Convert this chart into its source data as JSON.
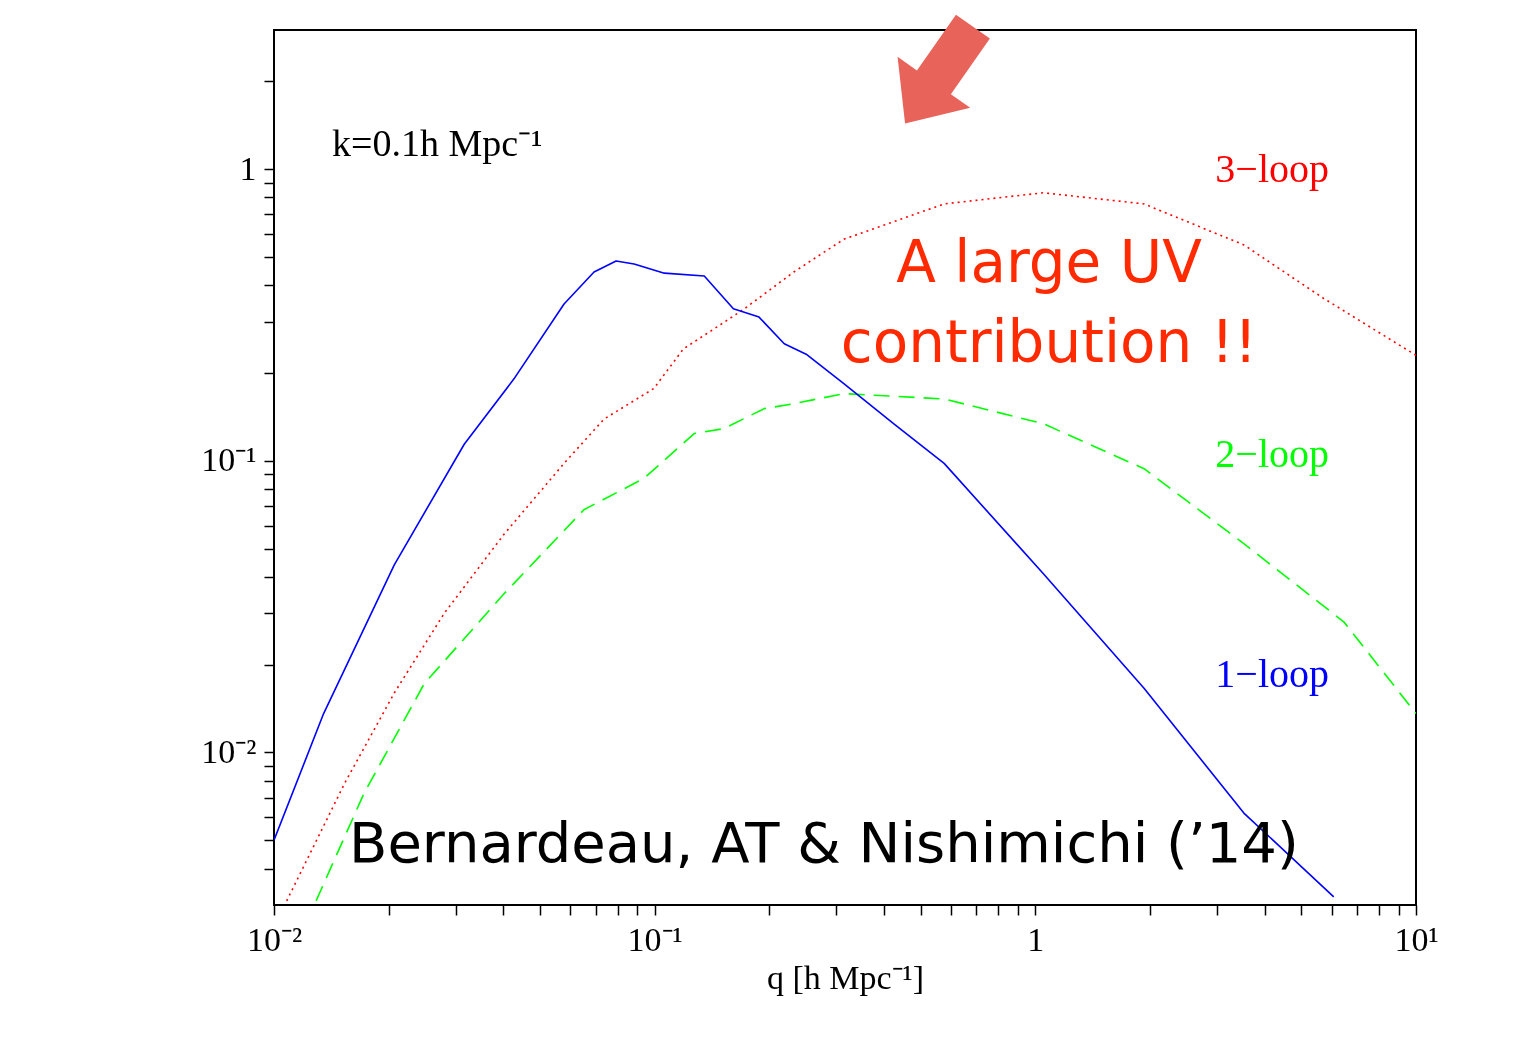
{
  "chart_data": {
    "type": "line",
    "xlabel": "q [h Mpc⁻¹]",
    "log": "xy",
    "grid": false,
    "legend": false,
    "xlim": [
      0.01,
      10
    ],
    "ylim": [
      0.003,
      3
    ],
    "xticks": [
      {
        "value": 0.01,
        "label": "10⁻²"
      },
      {
        "value": 0.02,
        "label": null
      },
      {
        "value": 0.03,
        "label": null
      },
      {
        "value": 0.04,
        "label": null
      },
      {
        "value": 0.05,
        "label": null
      },
      {
        "value": 0.06,
        "label": null
      },
      {
        "value": 0.07,
        "label": null
      },
      {
        "value": 0.08,
        "label": null
      },
      {
        "value": 0.09,
        "label": null
      },
      {
        "value": 0.1,
        "label": "10⁻¹"
      },
      {
        "value": 0.2,
        "label": null
      },
      {
        "value": 0.3,
        "label": null
      },
      {
        "value": 0.4,
        "label": null
      },
      {
        "value": 0.5,
        "label": null
      },
      {
        "value": 0.6,
        "label": null
      },
      {
        "value": 0.7,
        "label": null
      },
      {
        "value": 0.8,
        "label": null
      },
      {
        "value": 0.9,
        "label": null
      },
      1,
      {
        "value": 2,
        "label": null
      },
      {
        "value": 3,
        "label": null
      },
      {
        "value": 4,
        "label": null
      },
      {
        "value": 5,
        "label": null
      },
      {
        "value": 6,
        "label": null
      },
      {
        "value": 7,
        "label": null
      },
      {
        "value": 8,
        "label": null
      },
      {
        "value": 9,
        "label": null
      },
      {
        "value": 10,
        "label": "10¹"
      }
    ],
    "yticks": [
      {
        "value": 0.004,
        "label": null
      },
      {
        "value": 0.005,
        "label": null
      },
      {
        "value": 0.006,
        "label": null
      },
      {
        "value": 0.007,
        "label": null
      },
      {
        "value": 0.008,
        "label": null
      },
      {
        "value": 0.009,
        "label": null
      },
      {
        "value": 0.01,
        "label": "10⁻²"
      },
      {
        "value": 0.02,
        "label": null
      },
      {
        "value": 0.03,
        "label": null
      },
      {
        "value": 0.04,
        "label": null
      },
      {
        "value": 0.05,
        "label": null
      },
      {
        "value": 0.06,
        "label": null
      },
      {
        "value": 0.07,
        "label": null
      },
      {
        "value": 0.08,
        "label": null
      },
      {
        "value": 0.09,
        "label": null
      },
      {
        "value": 0.1,
        "label": "10⁻¹"
      },
      {
        "value": 0.2,
        "label": null
      },
      {
        "value": 0.3,
        "label": null
      },
      {
        "value": 0.4,
        "label": null
      },
      {
        "value": 0.5,
        "label": null
      },
      {
        "value": 0.6,
        "label": null
      },
      {
        "value": 0.7,
        "label": null
      },
      {
        "value": 0.8,
        "label": null
      },
      {
        "value": 0.9,
        "label": null
      },
      1,
      {
        "value": 2,
        "label": null
      }
    ],
    "annotations": [
      "k=0.1h Mpc⁻¹",
      "A large UV\ncontribution !!",
      "Bernardeau, AT & Nishimichi (’14)"
    ],
    "series": [
      {
        "name": "3−loop",
        "color": "#ff0000",
        "line_style": "dotted",
        "x": [
          0.0108,
          0.0153,
          0.0207,
          0.028,
          0.0402,
          0.0578,
          0.0736,
          0.0995,
          0.119,
          0.143,
          0.172,
          0.232,
          0.314,
          0.576,
          1.05,
          1.93,
          3.53,
          5.73,
          10
        ],
        "values": [
          0.0031,
          0.0078,
          0.016,
          0.03,
          0.056,
          0.098,
          0.139,
          0.177,
          0.242,
          0.283,
          0.332,
          0.444,
          0.575,
          0.76,
          0.83,
          0.76,
          0.55,
          0.36,
          0.23
        ]
      },
      {
        "name": "2−loop",
        "color": "#00ff00",
        "line_style": "dashed",
        "x": [
          0.0129,
          0.0172,
          0.0248,
          0.0402,
          0.0652,
          0.0937,
          0.127,
          0.152,
          0.194,
          0.232,
          0.314,
          0.576,
          1.05,
          1.93,
          3.53,
          6.47,
          10
        ],
        "values": [
          0.0031,
          0.0072,
          0.0172,
          0.035,
          0.068,
          0.087,
          0.124,
          0.129,
          0.151,
          0.157,
          0.17,
          0.163,
          0.134,
          0.094,
          0.052,
          0.028,
          0.0136
        ]
      },
      {
        "name": "1−loop",
        "color": "#0000ff",
        "line_style": "solid",
        "x": [
          0.01,
          0.0135,
          0.0207,
          0.0316,
          0.0427,
          0.0578,
          0.0693,
          0.0792,
          0.0883,
          0.106,
          0.135,
          0.161,
          0.188,
          0.219,
          0.25,
          0.314,
          0.425,
          0.576,
          1.05,
          1.93,
          3.53,
          6.08
        ],
        "values": [
          0.005,
          0.0136,
          0.044,
          0.114,
          0.191,
          0.345,
          0.444,
          0.484,
          0.473,
          0.44,
          0.43,
          0.332,
          0.311,
          0.252,
          0.232,
          0.184,
          0.134,
          0.098,
          0.041,
          0.0166,
          0.0062,
          0.0032
        ]
      }
    ]
  }
}
